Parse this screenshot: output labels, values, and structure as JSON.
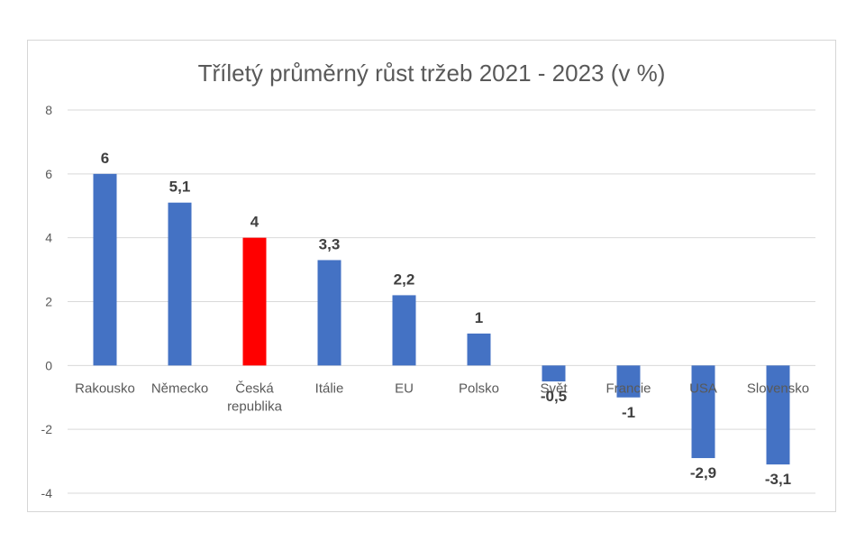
{
  "chart_data": {
    "type": "bar",
    "title": "Tříletý průměrný růst tržeb 2021 - 2023 (v %)",
    "xlabel": "",
    "ylabel": "",
    "ylim": [
      -4,
      8
    ],
    "yticks": [
      "8",
      "6",
      "4",
      "2",
      "0",
      "-2",
      "-4"
    ],
    "grid": true,
    "categories": [
      "Rakousko",
      "Německo",
      "Česká republika",
      "Itálie",
      "EU",
      "Polsko",
      "Svět",
      "Francie",
      "USA",
      "Slovensko"
    ],
    "values": [
      6,
      5.1,
      4,
      3.3,
      2.2,
      1,
      -0.5,
      -1,
      -2.9,
      -3.1
    ],
    "value_labels": [
      "6",
      "5,1",
      "4",
      "3,3",
      "2,2",
      "1",
      "-0,5",
      "-1",
      "-2,9",
      "-3,1"
    ],
    "colors": {
      "default": "#4472C4",
      "highlight": "#FF0000",
      "highlight_category": "Česká republika"
    }
  }
}
